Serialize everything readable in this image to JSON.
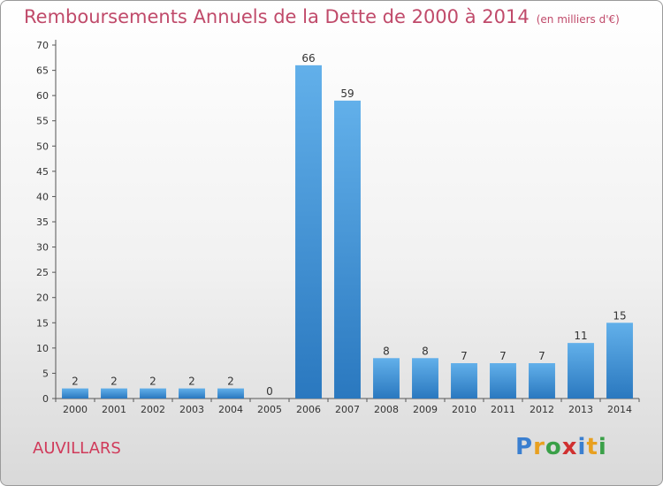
{
  "header": {
    "title": "Remboursements Annuels de la Dette de 2000 à 2014",
    "unit": "(en milliers d'€)"
  },
  "footer": {
    "city": "AUVILLARS",
    "logo": {
      "letters": [
        "P",
        "r",
        "o",
        "x",
        "i",
        "t",
        "i"
      ],
      "colors": [
        "#3a7fd0",
        "#e8a020",
        "#3aa048",
        "#d03030",
        "#3a7fd0",
        "#e8a020",
        "#3aa048"
      ]
    }
  },
  "colors": {
    "bar_light": "#62b0ea",
    "bar_dark": "#2a78bf",
    "title": "#c04a6a",
    "city": "#d03a5a"
  },
  "chart_data": {
    "type": "bar",
    "title": "Remboursements Annuels de la Dette de 2000 à 2014",
    "subtitle": "(en milliers d'€)",
    "xlabel": "",
    "ylabel": "",
    "categories": [
      "2000",
      "2001",
      "2002",
      "2003",
      "2004",
      "2005",
      "2006",
      "2007",
      "2008",
      "2009",
      "2010",
      "2011",
      "2012",
      "2013",
      "2014"
    ],
    "values": [
      2,
      2,
      2,
      2,
      2,
      0,
      66,
      59,
      8,
      8,
      7,
      7,
      7,
      11,
      15
    ],
    "ylim": [
      0,
      70
    ],
    "yticks": [
      0,
      5,
      10,
      15,
      20,
      25,
      30,
      35,
      40,
      45,
      50,
      55,
      60,
      65,
      70
    ],
    "grid": false,
    "legend": "none"
  }
}
